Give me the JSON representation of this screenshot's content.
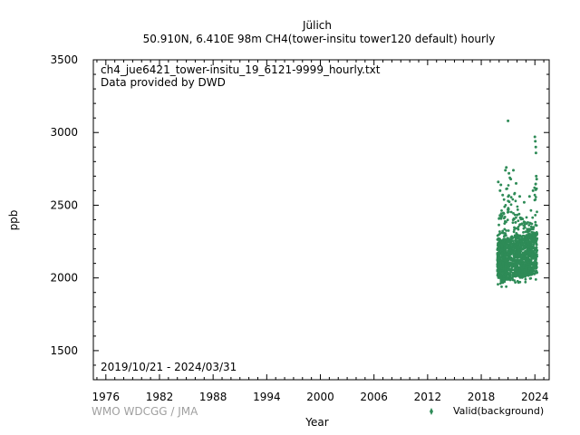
{
  "title": {
    "station": "Jülich",
    "subtitle": "50.910N, 6.410E 98m    CH4(tower-insitu tower120 default) hourly"
  },
  "info": {
    "filename": "ch4_jue6421_tower-insitu_19_6121-9999_hourly.txt",
    "provider": "Data provided by DWD",
    "date_range": "2019/10/21 - 2024/03/31"
  },
  "credit": "WMO WDCGG / JMA",
  "legend": {
    "label": "Valid(background)",
    "color": "#2e8b57"
  },
  "chart_data": {
    "type": "scatter",
    "xlabel": "Year",
    "ylabel": "ppb",
    "xlim": [
      1974.6,
      2025.6
    ],
    "ylim": [
      1300,
      3500
    ],
    "x_ticks": [
      1976,
      1982,
      1988,
      1994,
      2000,
      2006,
      2012,
      2018,
      2024
    ],
    "y_ticks": [
      1500,
      2000,
      2500,
      3000,
      3500
    ],
    "grid": false,
    "legend_position": "bottom-right",
    "series": [
      {
        "name": "Valid(background)",
        "color": "#2e8b57",
        "envelope": [
          {
            "x": 2019.8,
            "low": 1950,
            "high": 2290
          },
          {
            "x": 2020.0,
            "low": 1940,
            "high": 2420
          },
          {
            "x": 2020.3,
            "low": 1925,
            "high": 2500
          },
          {
            "x": 2020.6,
            "low": 1930,
            "high": 2560
          },
          {
            "x": 2020.9,
            "low": 1945,
            "high": 2640
          },
          {
            "x": 2021.2,
            "low": 1955,
            "high": 2700
          },
          {
            "x": 2021.5,
            "low": 1960,
            "high": 2550
          },
          {
            "x": 2021.8,
            "low": 1965,
            "high": 2620
          },
          {
            "x": 2022.1,
            "low": 1970,
            "high": 2480
          },
          {
            "x": 2022.4,
            "low": 1960,
            "high": 2420
          },
          {
            "x": 2022.7,
            "low": 1965,
            "high": 2450
          },
          {
            "x": 2023.0,
            "low": 1970,
            "high": 2440
          },
          {
            "x": 2023.3,
            "low": 1975,
            "high": 2480
          },
          {
            "x": 2023.6,
            "low": 1980,
            "high": 2470
          },
          {
            "x": 2023.9,
            "low": 1985,
            "high": 2720
          },
          {
            "x": 2024.25,
            "low": 1990,
            "high": 2600
          }
        ],
        "outliers": [
          {
            "x": 2019.9,
            "y": 2660
          },
          {
            "x": 2020.1,
            "y": 2600
          },
          {
            "x": 2020.2,
            "y": 2640
          },
          {
            "x": 2020.4,
            "y": 2570
          },
          {
            "x": 2020.7,
            "y": 2740
          },
          {
            "x": 2020.8,
            "y": 2760
          },
          {
            "x": 2021.0,
            "y": 3080
          },
          {
            "x": 2021.1,
            "y": 2720
          },
          {
            "x": 2021.3,
            "y": 2680
          },
          {
            "x": 2021.6,
            "y": 2740
          },
          {
            "x": 2021.9,
            "y": 2650
          },
          {
            "x": 2022.3,
            "y": 2560
          },
          {
            "x": 2022.8,
            "y": 2520
          },
          {
            "x": 2023.4,
            "y": 2560
          },
          {
            "x": 2023.8,
            "y": 2600
          },
          {
            "x": 2024.0,
            "y": 2970
          },
          {
            "x": 2024.05,
            "y": 2940
          },
          {
            "x": 2024.1,
            "y": 2900
          },
          {
            "x": 2024.12,
            "y": 2860
          },
          {
            "x": 2024.15,
            "y": 2700
          },
          {
            "x": 2024.2,
            "y": 2680
          }
        ]
      }
    ]
  }
}
